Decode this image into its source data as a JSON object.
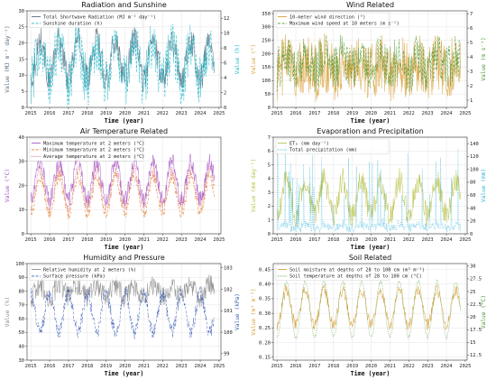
{
  "chart_data": [
    {
      "type": "line",
      "title": "Radiation and Sunshine",
      "xlabel": "Time (year)",
      "x_ticks": [
        "2015",
        "2016",
        "2017",
        "2018",
        "2019",
        "2020",
        "2021",
        "2022",
        "2023",
        "2024",
        "2025"
      ],
      "x_range": [
        2014.8,
        2025.1
      ],
      "ylabel_left": "Value (MJ m⁻² day⁻¹)",
      "ylabel_right": "Value (h)",
      "ylim_left": [
        0,
        30
      ],
      "yticks_left": [
        0,
        5,
        10,
        15,
        20,
        25,
        30
      ],
      "ylim_right": [
        0,
        13
      ],
      "yticks_right": [
        0,
        2,
        4,
        6,
        8,
        10,
        12
      ],
      "legend_placement": "top-left",
      "grid": true,
      "series": [
        {
          "name": "Total Shortwave Radiation (MJ m⁻² day⁻¹)",
          "axis": "left",
          "color": "#5a6d7e",
          "style": "solid",
          "mean": 15,
          "amp": 6,
          "noise": 4.5,
          "min": 2,
          "max": 29
        },
        {
          "name": "Sunshine duration (h)",
          "axis": "right",
          "color": "#20b8c8",
          "style": "dashed",
          "mean": 6,
          "amp": 2.5,
          "noise": 3.5,
          "min": 0,
          "max": 12.5
        }
      ]
    },
    {
      "type": "line",
      "title": "Wind Related",
      "xlabel": "Time (year)",
      "x_ticks": [
        "2015",
        "2016",
        "2017",
        "2018",
        "2019",
        "2020",
        "2021",
        "2022",
        "2023",
        "2024",
        "2025"
      ],
      "x_range": [
        2014.8,
        2025.1
      ],
      "ylabel_left": "Value (°)",
      "ylabel_right": "Value (m s⁻¹)",
      "ylim_left": [
        0,
        360
      ],
      "yticks_left": [
        0,
        50,
        100,
        150,
        200,
        250,
        300,
        350
      ],
      "ylim_right": [
        0.5,
        7.2
      ],
      "yticks_right": [
        1,
        2,
        3,
        4,
        5,
        6,
        7
      ],
      "legend_placement": "top-left",
      "grid": true,
      "series": [
        {
          "name": "10-meter wind direction (°)",
          "axis": "left",
          "color": "#d9a03a",
          "style": "solid",
          "mean": 150,
          "amp": 20,
          "noise": 110,
          "min": 10,
          "max": 350
        },
        {
          "name": "Maximum wind speed at 10 meters (m s⁻¹)",
          "axis": "right",
          "color": "#4d9a34",
          "style": "dashed",
          "mean": 3.6,
          "amp": 0.5,
          "noise": 1.6,
          "min": 1,
          "max": 7
        }
      ]
    },
    {
      "type": "line",
      "title": "Air Temperature Related",
      "xlabel": "Time (year)",
      "x_ticks": [
        "2015",
        "2016",
        "2017",
        "2018",
        "2019",
        "2020",
        "2021",
        "2022",
        "2023",
        "2024",
        "2025"
      ],
      "x_range": [
        2014.8,
        2025.1
      ],
      "ylabel_left": "Value (°C)",
      "ylim_left": [
        0,
        40
      ],
      "yticks_left": [
        0,
        10,
        20,
        30,
        40
      ],
      "legend_placement": "top-left",
      "grid": true,
      "series": [
        {
          "name": "Maximum temperature at 2 meters (°C)",
          "axis": "left",
          "color": "#a557c8",
          "style": "solid",
          "mean": 22,
          "amp": 8,
          "noise": 3.5,
          "min": 4,
          "max": 38
        },
        {
          "name": "Minimum temperature at 2 meters (°C)",
          "axis": "left",
          "color": "#e8802e",
          "style": "dashed",
          "mean": 16,
          "amp": 7.5,
          "noise": 2.5,
          "min": 1,
          "max": 28
        },
        {
          "name": "Average temperature at 2 meters (°C)",
          "axis": "left",
          "color": "#c94a6a",
          "style": "dotted",
          "mean": 19,
          "amp": 7.5,
          "noise": 2.5,
          "min": 3,
          "max": 32
        }
      ]
    },
    {
      "type": "line",
      "title": "Evaporation and Precipitation",
      "xlabel": "Time (year)",
      "x_ticks": [
        "2015",
        "2016",
        "2017",
        "2018",
        "2019",
        "2020",
        "2021",
        "2022",
        "2023",
        "2024",
        "2025"
      ],
      "x_range": [
        2014.8,
        2025.1
      ],
      "ylabel_left": "Value (mm day⁻¹)",
      "ylabel_right": "Value (mm)",
      "ylim_left": [
        0,
        7
      ],
      "yticks_left": [
        0,
        1,
        2,
        3,
        4,
        5,
        6,
        7
      ],
      "ylim_right": [
        0,
        150
      ],
      "yticks_right": [
        0,
        20,
        40,
        60,
        80,
        100,
        120,
        140
      ],
      "legend_placement": "top-left",
      "grid": true,
      "series": [
        {
          "name": "ET₀ (mm day⁻¹)",
          "axis": "left",
          "color": "#b9c24a",
          "style": "solid",
          "mean": 2.6,
          "amp": 1.3,
          "noise": 0.9,
          "min": 0.4,
          "max": 6.3
        },
        {
          "name": "Total precipitation (mm)",
          "axis": "right",
          "color": "#35b4d8",
          "style": "dotted",
          "mean": 8,
          "amp": 5,
          "noise": 14,
          "min": 0,
          "max": 145,
          "spiky": true
        }
      ]
    },
    {
      "type": "line",
      "title": "Humidity and Pressure",
      "xlabel": "Time (year)",
      "x_ticks": [
        "2015",
        "2016",
        "2017",
        "2018",
        "2019",
        "2020",
        "2021",
        "2022",
        "2023",
        "2024",
        "2025"
      ],
      "x_range": [
        2014.8,
        2025.1
      ],
      "ylabel_left": "Value (%)",
      "ylabel_right": "Value (kPa)",
      "ylim_left": [
        30,
        100
      ],
      "yticks_left": [
        30,
        40,
        50,
        60,
        70,
        80,
        90,
        100
      ],
      "ylim_right": [
        98.7,
        103.2
      ],
      "yticks_right": [
        99,
        100,
        101,
        102,
        103
      ],
      "legend_placement": "top-left",
      "grid": true,
      "series": [
        {
          "name": "Relative humidity at 2 meters (%)",
          "axis": "left",
          "color": "#8c8c8c",
          "style": "solid",
          "mean": 80,
          "amp": 4,
          "noise": 8,
          "min": 45,
          "max": 97
        },
        {
          "name": "Surface pressure (kPa)",
          "axis": "right",
          "color": "#3a5db5",
          "style": "dashed",
          "mean": 100.9,
          "amp": -0.9,
          "noise": 0.35,
          "min": 99.2,
          "max": 102.7
        }
      ]
    },
    {
      "type": "line",
      "title": "Soil Related",
      "xlabel": "Time (year)",
      "x_ticks": [
        "2015",
        "2016",
        "2017",
        "2018",
        "2019",
        "2020",
        "2021",
        "2022",
        "2023",
        "2024",
        "2025"
      ],
      "x_range": [
        2014.8,
        2025.1
      ],
      "ylabel_left": "Value (m³ m⁻³)",
      "ylabel_right": "Value (°C)",
      "ylim_left": [
        0.14,
        0.47
      ],
      "yticks_left": [
        0.15,
        0.2,
        0.25,
        0.3,
        0.35,
        0.4,
        0.45
      ],
      "ylim_right": [
        11.5,
        30.5
      ],
      "yticks_right": [
        12.5,
        15.0,
        17.5,
        20.0,
        22.5,
        25.0,
        27.5,
        30.0
      ],
      "legend_placement": "top-left",
      "grid": true,
      "series": [
        {
          "name": "Soil moisture at depths of 28 to 100 cm (m³ m⁻³)",
          "axis": "left",
          "color": "#d6a23e",
          "style": "solid",
          "mean": 0.32,
          "amp": 0.06,
          "noise": 0.02,
          "min": 0.16,
          "max": 0.44
        },
        {
          "name": "Soil temperature at depths of 28 to 100 cm (°C)",
          "axis": "right",
          "color": "#4d9a34",
          "style": "dotted",
          "mean": 21.5,
          "amp": 5.5,
          "noise": 0.4,
          "min": 12.5,
          "max": 29.5
        }
      ]
    }
  ]
}
